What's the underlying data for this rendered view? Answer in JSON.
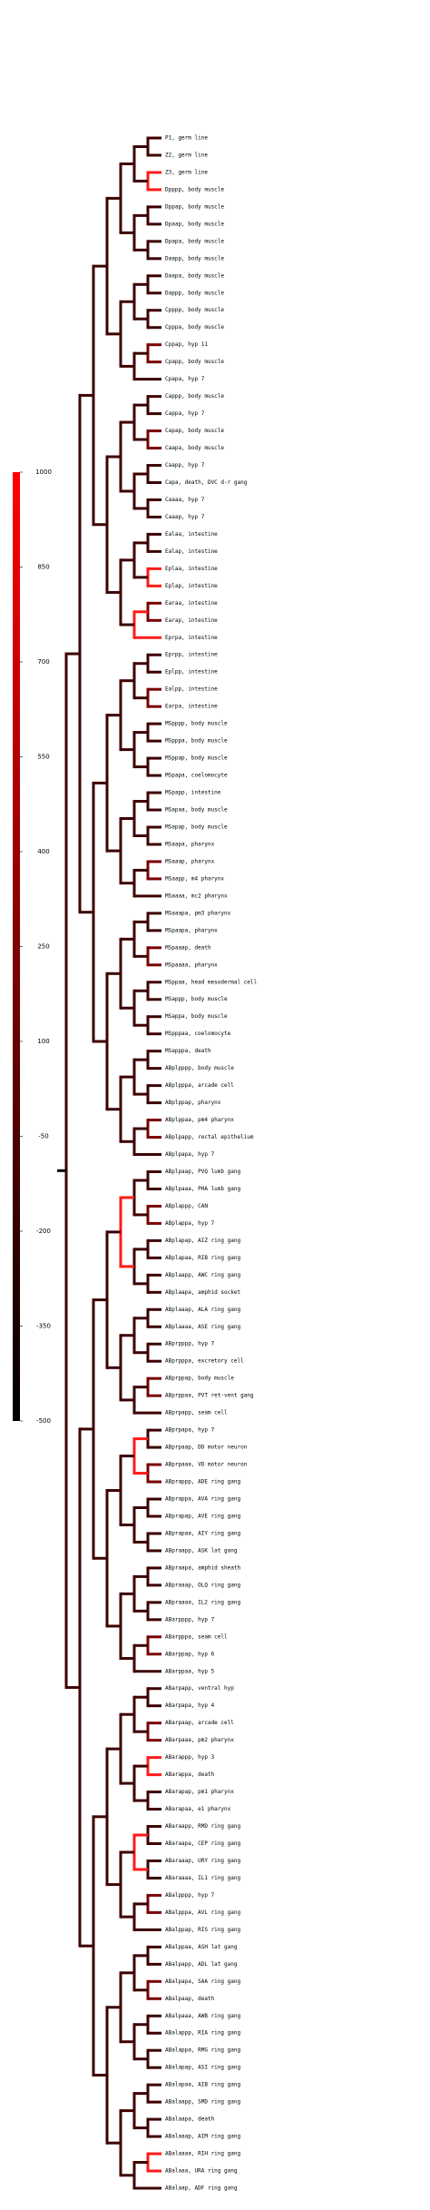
{
  "colorbar": {
    "range": [
      -500,
      1000
    ],
    "ticks": [
      1000,
      850,
      700,
      550,
      400,
      250,
      100,
      -50,
      -200,
      -350,
      -500
    ],
    "colors": [
      "#ff0000",
      "#000000"
    ]
  },
  "leaves": [
    "P1, germ line",
    "Z2, germ line",
    "Z3, germ line",
    "Dpppp, body muscle",
    "Dppap, body muscle",
    "Dpaap, body muscle",
    "Dpapa, body muscle",
    "Daapp, body muscle",
    "Daapa, body muscle",
    "Dappp, body muscle",
    "Cpppp, body muscle",
    "Cpppa, body muscle",
    "Cppap, hyp 11",
    "Cpapp, body muscle",
    "Cpapa, hyp 7",
    "Cappp, body muscle",
    "Cappa, hyp 7",
    "Capap, body muscle",
    "Caapa, body muscle",
    "Caapp, hyp 7",
    "Capa, death, DVC d-r gang",
    "Caaaa, hyp 7",
    "Caaap, hyp 7",
    "Ealaa, intestine",
    "Ealap, intestine",
    "Eplaa, intestine",
    "Eplap, intestine",
    "Earaa, intestine",
    "Earap, intestine",
    "Eprpa, intestine",
    "Eprpp, intestine",
    "Eplpp, intestine",
    "Ealpp, intestine",
    "Earpa, intestine",
    "MSpppp, body muscle",
    "MSpppa, body muscle",
    "MSppap, body muscle",
    "MSpapa, coelomocyte",
    "MSpapp, intestine",
    "MSapaa, body muscle",
    "MSapap, body muscle",
    "MSaapa, pharynx",
    "MSaaap, pharynx",
    "MSaapp, m4 pharynx",
    "MSaaaa, mc2 pharynx",
    "MSaaapa, pm3 pharynx",
    "MSpaapa, pharynx",
    "MSpaaap, death",
    "MSpaaaa, pharynx",
    "MSppaa, head mesodermal cell",
    "MSappp, body muscle",
    "MSappa, body muscle",
    "MSpppaa, coelomocyte",
    "MSapppa, death",
    "ABplpppp, body muscle",
    "ABplpppa, arcade cell",
    "ABplppap, pharynx",
    "ABplppaa, pm4 pharynx",
    "ABplpapp, rectal epithelium",
    "ABplpapa, hyp 7",
    "ABplpaap, PVQ lumb gang",
    "ABplpaaa, PHA lumb gang",
    "ABplappp, CAN",
    "ABplappa, hyp 7",
    "ABplapap, AIZ ring gang",
    "ABplapaa, RIB ring gang",
    "ABplaapp, AWC ring gang",
    "ABplaapa, amphid socket",
    "ABplaaap, ALA ring gang",
    "ABplaaaa, ASE ring gang",
    "ABprpppp, hyp 7",
    "ABprpppa, excretory cell",
    "ABprppap, body muscle",
    "ABprppaa, PVT ret-vent gang",
    "ABprpapp, seam cell",
    "ABprpapa, hyp 7",
    "ABprpaap, DD motor neuron",
    "ABprpaaa, VD motor neuron",
    "ABprappp, ADE ring gang",
    "ABprappa, AVA ring gang",
    "ABprapap, AVE ring gang",
    "ABprapaa, AIY ring gang",
    "ABpraapp, ASK lat gang",
    "ABpraapa, amphid sheath",
    "ABpraaap, OLQ ring gang",
    "ABpraaaa, IL2 ring gang",
    "ABarpppp, hyp 7",
    "ABarpppa, seam cell",
    "ABarppap, hyp 6",
    "ABarppaa, hyp 5",
    "ABarpapp, ventral hyp",
    "ABarpapa, hyp 4",
    "ABarpaap, arcade cell",
    "ABarpaaa, pm2 pharynx",
    "ABarappp, hyp 3",
    "ABarappa, death",
    "ABarapap, pm1 pharynx",
    "ABarapaa, e1 pharynx",
    "ABaraapp, RMD ring gang",
    "ABaraapa, CEP ring gang",
    "ABaraaap, URY ring gang",
    "ABaraaaa, IL1 ring gang",
    "ABalpppp, hyp 7",
    "ABalpppa, AVL ring gang",
    "ABalppap, RIS ring gang",
    "ABalppaa, ASH lat gang",
    "ABalpapp, ADL lat gang",
    "ABalpapa, SAA ring gang",
    "ABalpaap, death",
    "ABalpaaa, AWB ring gang",
    "ABalappp, RIA ring gang",
    "ABalappa, RMG ring gang",
    "ABalapap, ASI ring gang",
    "ABalapaa, AIB ring gang",
    "ABalaapp, SMD ring gang",
    "ABalaapa, death",
    "ABalaaap, AIM ring gang",
    "ABalaaaa, RIH ring gang",
    "ABalaaa, URA ring gang",
    "ABalaap, ADF ring gang"
  ]
}
